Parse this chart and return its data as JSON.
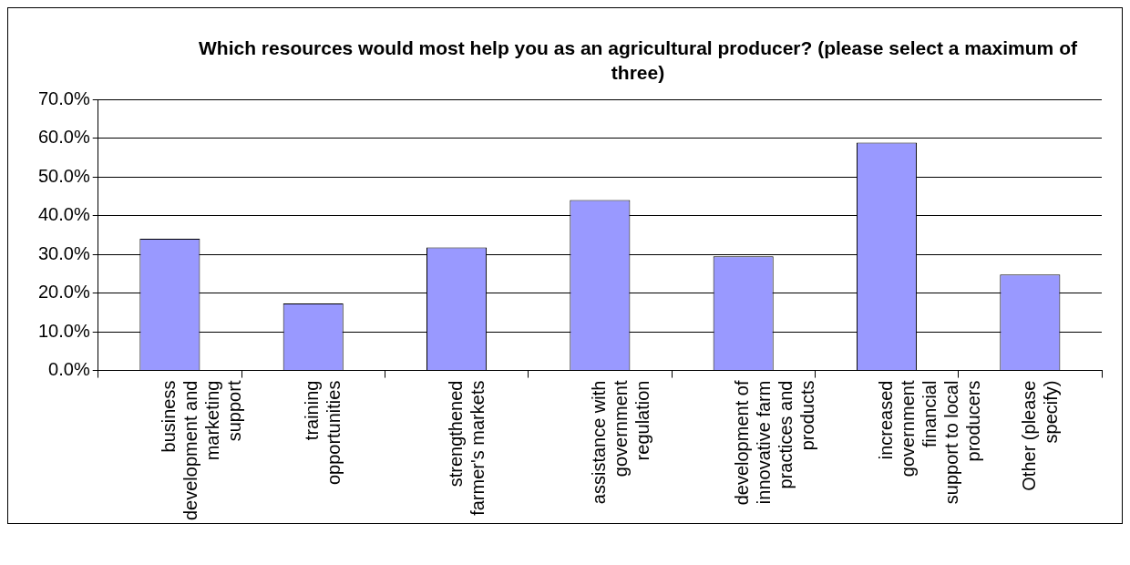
{
  "chart_data": {
    "type": "bar",
    "title": "Which resources would most help you as an agricultural producer? (please select a maximum of three)",
    "categories": [
      "business development and marketing support",
      "training opportunities",
      "strengthened farmer's markets",
      "assistance with government regulation",
      "development of innovative farm practices and products",
      "increased government financial support to local producers",
      "Other (please specify)"
    ],
    "values": [
      34.0,
      17.3,
      31.8,
      44.0,
      29.5,
      58.8,
      24.8
    ],
    "color": "#9999ff",
    "ylim": [
      0,
      70
    ],
    "yticks": [
      {
        "value": 0,
        "label": "0.0%"
      },
      {
        "value": 10,
        "label": "10.0%"
      },
      {
        "value": 20,
        "label": "20.0%"
      },
      {
        "value": 30,
        "label": "30.0%"
      },
      {
        "value": 40,
        "label": "40.0%"
      },
      {
        "value": 50,
        "label": "50.0%"
      },
      {
        "value": 60,
        "label": "60.0%"
      },
      {
        "value": 70,
        "label": "70.0%"
      }
    ],
    "grid": "y",
    "legend": false
  }
}
